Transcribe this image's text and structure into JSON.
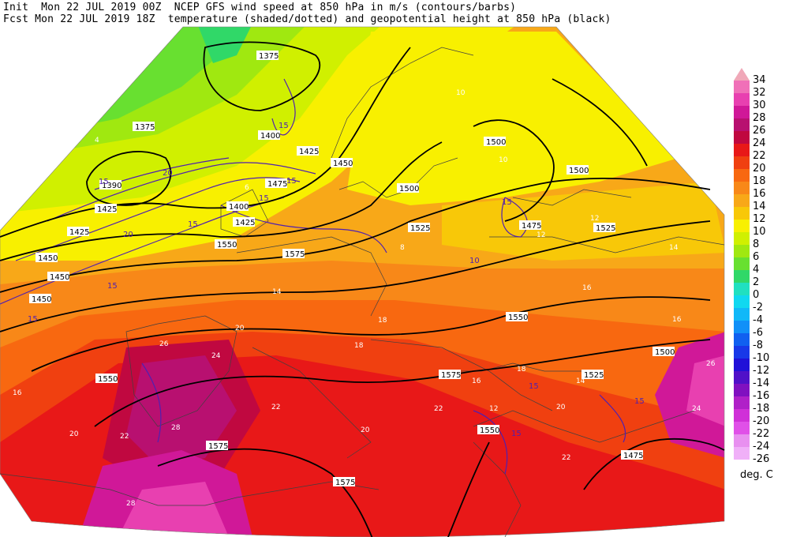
{
  "header": {
    "line1": "Init  Mon 22 JUL 2019 00Z  NCEP GFS wind speed at 850 hPa in m/s (contours/barbs)",
    "line2": "Fcst Mon 22 JUL 2019 18Z  temperature (shaded/dotted) and geopotential height at 850 hPa (black)"
  },
  "legend": {
    "unit": "deg. C",
    "items": [
      {
        "label": "34",
        "color": "#f0a8b8"
      },
      {
        "label": "32",
        "color": "#f070b8"
      },
      {
        "label": "30",
        "color": "#e840b0"
      },
      {
        "label": "28",
        "color": "#d01898"
      },
      {
        "label": "26",
        "color": "#b81070"
      },
      {
        "label": "24",
        "color": "#c00840"
      },
      {
        "label": "22",
        "color": "#e81818"
      },
      {
        "label": "20",
        "color": "#f04010"
      },
      {
        "label": "18",
        "color": "#f86810"
      },
      {
        "label": "16",
        "color": "#f88818"
      },
      {
        "label": "14",
        "color": "#f8a818"
      },
      {
        "label": "12",
        "color": "#f8c808"
      },
      {
        "label": "10",
        "color": "#f8f000"
      },
      {
        "label": "8",
        "color": "#d0f000"
      },
      {
        "label": "6",
        "color": "#a0e810"
      },
      {
        "label": "4",
        "color": "#68e030"
      },
      {
        "label": "2",
        "color": "#30d868"
      },
      {
        "label": "0",
        "color": "#20e0c0"
      },
      {
        "label": "-2",
        "color": "#10d8f0"
      },
      {
        "label": "-4",
        "color": "#10b8f8"
      },
      {
        "label": "-6",
        "color": "#1090f8"
      },
      {
        "label": "-8",
        "color": "#1060f0"
      },
      {
        "label": "-10",
        "color": "#1838e8"
      },
      {
        "label": "-12",
        "color": "#2010d8"
      },
      {
        "label": "-14",
        "color": "#5010c8"
      },
      {
        "label": "-16",
        "color": "#8010c0"
      },
      {
        "label": "-18",
        "color": "#b020c8"
      },
      {
        "label": "-20",
        "color": "#d030d8"
      },
      {
        "label": "-22",
        "color": "#e050e8"
      },
      {
        "label": "-24",
        "color": "#e890f0"
      },
      {
        "label": "-26",
        "color": "#f0b0f8"
      }
    ]
  },
  "height_labels": [
    "1375",
    "1375",
    "1400",
    "1425",
    "1450",
    "1475",
    "1500",
    "1500",
    "1500",
    "1525",
    "1525",
    "1550",
    "1550",
    "1575",
    "1575",
    "1550",
    "1575",
    "1550",
    "1575",
    "1500",
    "1525",
    "1475",
    "1450",
    "1450",
    "1425",
    "1390",
    "1400",
    "1425",
    "1475",
    "1425",
    "1450"
  ],
  "wind_labels": [
    "15",
    "15",
    "15",
    "15",
    "20",
    "15",
    "15",
    "15",
    "15",
    "10",
    "20",
    "15",
    "15",
    "15"
  ],
  "temp_labels": [
    "10",
    "12",
    "14",
    "16",
    "18",
    "20",
    "22",
    "24",
    "26",
    "28",
    "16",
    "18",
    "20",
    "22",
    "20",
    "16",
    "14",
    "12",
    "10",
    "8",
    "6",
    "4",
    "22",
    "20",
    "18",
    "16",
    "14",
    "12",
    "24",
    "26",
    "22",
    "28"
  ]
}
